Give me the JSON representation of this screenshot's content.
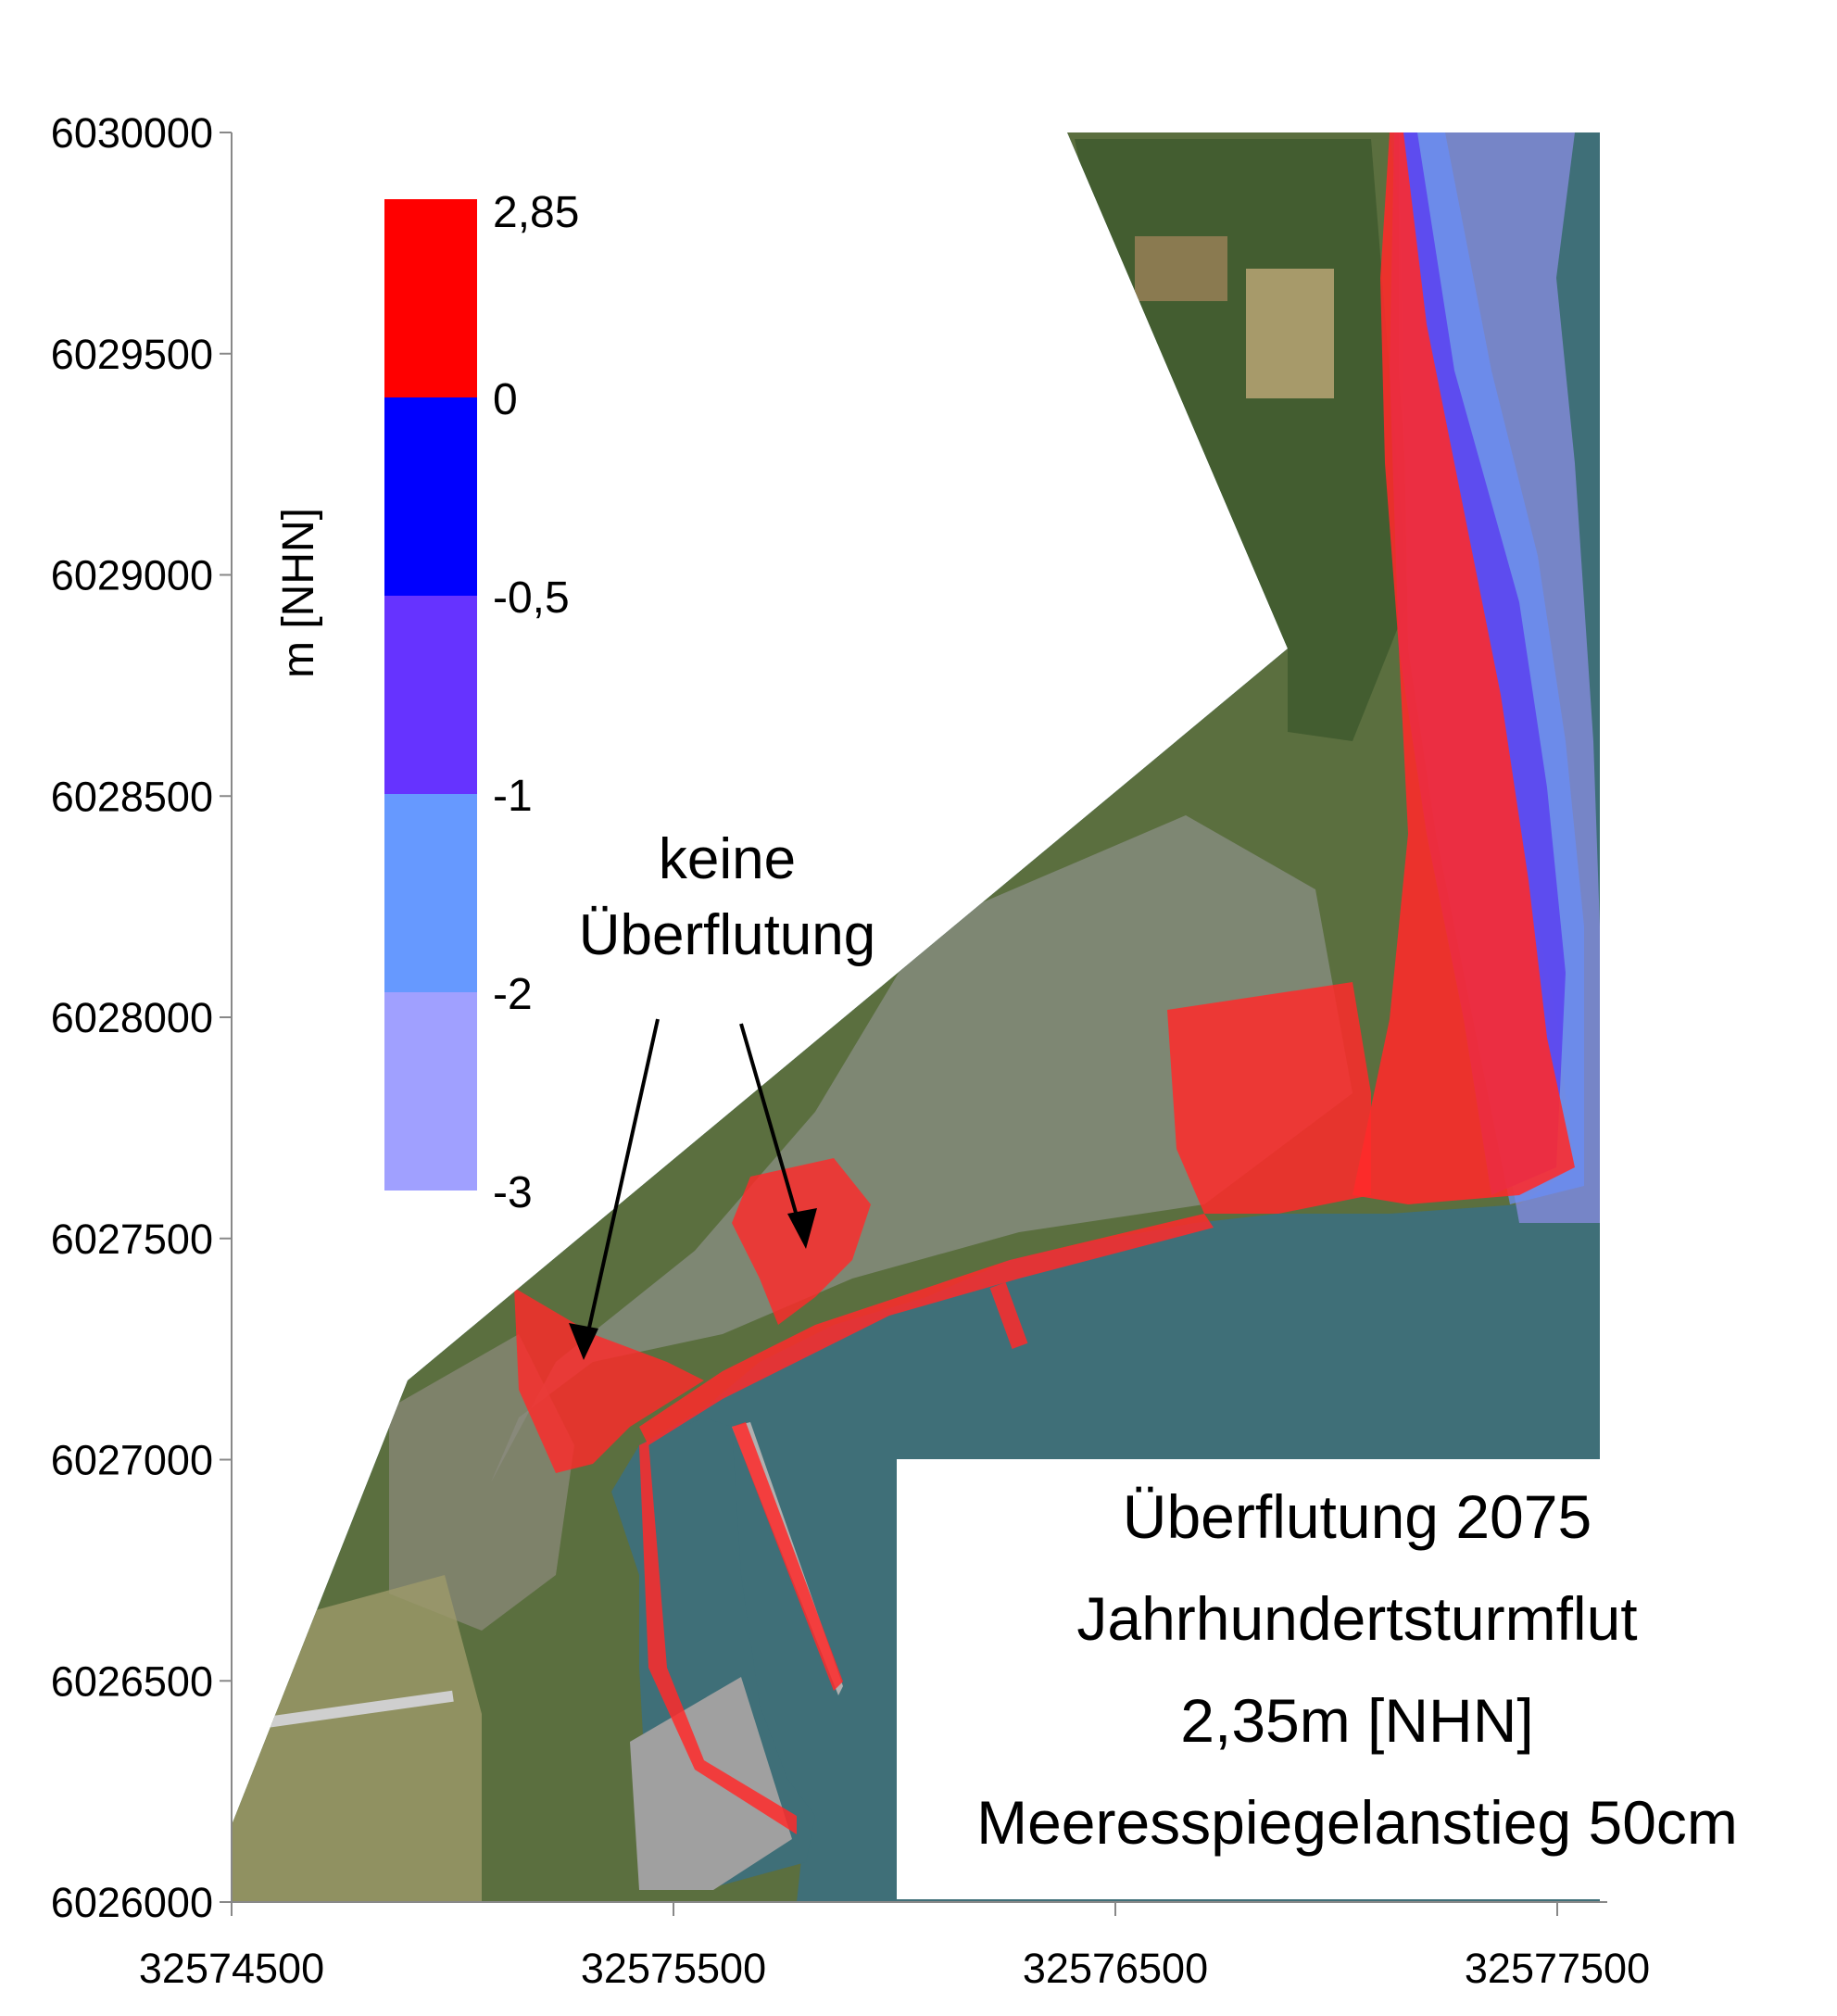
{
  "axes": {
    "y_ticks": [
      "6030000",
      "6029500",
      "6029000",
      "6028500",
      "6028000",
      "6027500",
      "6027000",
      "6026500",
      "6026000"
    ],
    "x_ticks": [
      "32574500",
      "32575500",
      "32576500",
      "32577500"
    ]
  },
  "legend": {
    "unit": "m [NHN]",
    "labels": [
      "2,85",
      "0",
      "-0,5",
      "-1",
      "-2",
      "-3"
    ],
    "colors": [
      "#ff0000",
      "#0000ff",
      "#6633ff",
      "#6699ff",
      "#a0a0ff"
    ]
  },
  "annotation": {
    "line1": "keine",
    "line2": "Überflutung"
  },
  "caption": {
    "line1": "Überflutung 2075",
    "line2": "Jahrhundertsturmflut",
    "line3": "2,35m [NHN]",
    "line4": "Meeresspiegelanstieg 50cm"
  },
  "colors": {
    "water": "#3f6f78",
    "land": "#5c7040",
    "flood": "#ff2a2a"
  }
}
